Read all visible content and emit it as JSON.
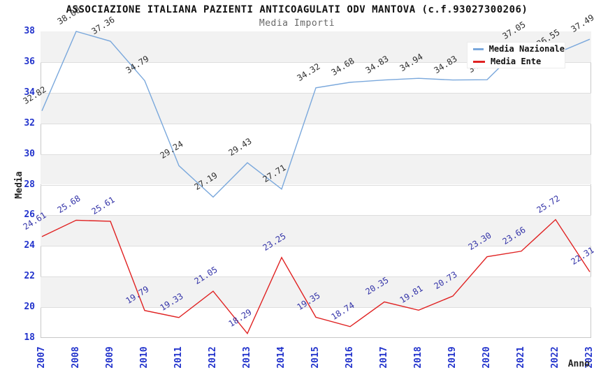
{
  "chart_data": {
    "type": "line",
    "title": "ASSOCIAZIONE ITALIANA PAZIENTI ANTICOAGULATI ODV MANTOVA (c.f.93027300206)",
    "subtitle": "Media Importi",
    "xlabel": "Anno",
    "ylabel": "Media",
    "x": [
      "2007",
      "2008",
      "2009",
      "2010",
      "2011",
      "2012",
      "2013",
      "2014",
      "2015",
      "2016",
      "2017",
      "2018",
      "2019",
      "2020",
      "2021",
      "2022",
      "2023"
    ],
    "series": [
      {
        "name": "Media Nazionale",
        "color": "#7aa8dc",
        "values": [
          32.82,
          38.0,
          37.36,
          34.79,
          29.24,
          27.19,
          29.43,
          27.71,
          34.32,
          34.68,
          34.83,
          34.94,
          34.83,
          34.85,
          37.05,
          36.55,
          37.49
        ]
      },
      {
        "name": "Media Ente",
        "color": "#e02222",
        "values": [
          24.61,
          25.68,
          25.61,
          19.79,
          19.33,
          21.05,
          18.29,
          23.25,
          19.35,
          18.74,
          20.35,
          19.81,
          20.73,
          23.3,
          23.66,
          25.72,
          22.31
        ]
      }
    ],
    "ylim": [
      18,
      38
    ],
    "ytick_step": 2,
    "grid": "horizontal, alternating shaded bands",
    "band_color": "#f2f2f2",
    "legend_position": "top-right, overlapping plot",
    "value_labels": "each point labeled, rotated ~32deg; 2020 and 2022 Media Nazionale labels partially covered by legend (values estimated)",
    "tick_label_color": "#2233cc",
    "value_label_color_nazionale": "#303030",
    "value_label_color_ente": "#3434a8"
  }
}
